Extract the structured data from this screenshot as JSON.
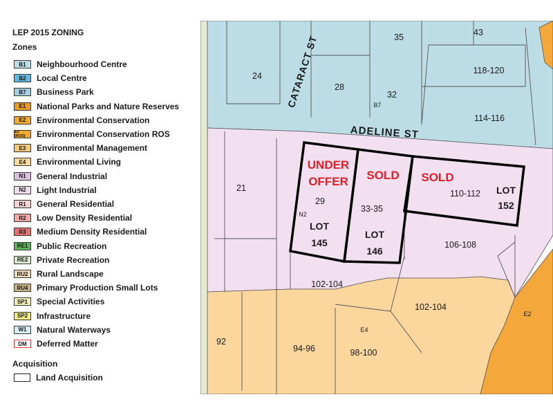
{
  "legend": {
    "title": "LEP 2015 ZONING",
    "subtitle": "Zones",
    "zones": [
      {
        "code": "B1",
        "label": "Neighbourhood Centre",
        "color": "#bcdde9"
      },
      {
        "code": "B2",
        "label": "Local Centre",
        "color": "#5fb8df"
      },
      {
        "code": "B7",
        "label": "Business Park",
        "color": "#a7cde0"
      },
      {
        "code": "E1",
        "label": "National Parks and Nature Reserves",
        "color": "#e69a2a"
      },
      {
        "code": "E2",
        "label": "Environmental Conservation",
        "color": "#f2a92f"
      },
      {
        "code": "E2 (ROS)",
        "label": "Environmental Conservation ROS",
        "color": "#f2a92f"
      },
      {
        "code": "E3",
        "label": "Environmental Management",
        "color": "#f5c878"
      },
      {
        "code": "E4",
        "label": "Environmental Living",
        "color": "#fbd99b"
      },
      {
        "code": "N1",
        "label": "General Industrial",
        "color": "#dcc2de"
      },
      {
        "code": "N2",
        "label": "Light Industrial",
        "color": "#f1dded"
      },
      {
        "code": "R1",
        "label": "General Residential",
        "color": "#f5d3d3"
      },
      {
        "code": "R2",
        "label": "Low Density Residential",
        "color": "#f2a6a6"
      },
      {
        "code": "R3",
        "label": "Medium Density Residential",
        "color": "#e77070"
      },
      {
        "code": "RE1",
        "label": "Public Recreation",
        "color": "#5fb35a"
      },
      {
        "code": "RE2",
        "label": "Private Recreation",
        "color": "#d9ecd0"
      },
      {
        "code": "RU2",
        "label": "Rural Landscape",
        "color": "#ecdcb9"
      },
      {
        "code": "RU4",
        "label": "Primary Production Small Lots",
        "color": "#c9b489"
      },
      {
        "code": "SP1",
        "label": "Special Activities",
        "color": "#f5f0b7"
      },
      {
        "code": "SP2",
        "label": "Infrastructure",
        "color": "#f4ec7e"
      },
      {
        "code": "W1",
        "label": "Natural Waterways",
        "color": "#d8eef4"
      },
      {
        "code": "DM",
        "label": "Deferred Matter",
        "color": "#ffffff",
        "border": "#e33b3b"
      }
    ],
    "acquisition_heading": "Acquisition",
    "acquisition_label": "Land Acquisition"
  },
  "map": {
    "colors": {
      "b7": "#bcdde6",
      "n2": "#f2dff0",
      "e4": "#fbd79d",
      "e2": "#f4a73a",
      "green_strip": "#e4ebd2",
      "line": "#555555",
      "highlight": "#000000",
      "status": "#e0202a"
    },
    "streets": [
      "CATARACT ST",
      "ADELINE ST"
    ],
    "lot_numbers": [
      "35",
      "43",
      "24",
      "118-120",
      "28",
      "32",
      "114-116",
      "21",
      "29",
      "33-35",
      "110-112",
      "106-108",
      "102-104",
      "102-104",
      "92",
      "94-96",
      "98-100"
    ],
    "zone_labels": [
      "B7",
      "N2",
      "E4",
      "E2"
    ],
    "status_labels": [
      "UNDER",
      "OFFER",
      "SOLD",
      "SOLD"
    ],
    "lot_tags": [
      "LOT",
      "145",
      "LOT",
      "146",
      "LOT",
      "152"
    ]
  }
}
